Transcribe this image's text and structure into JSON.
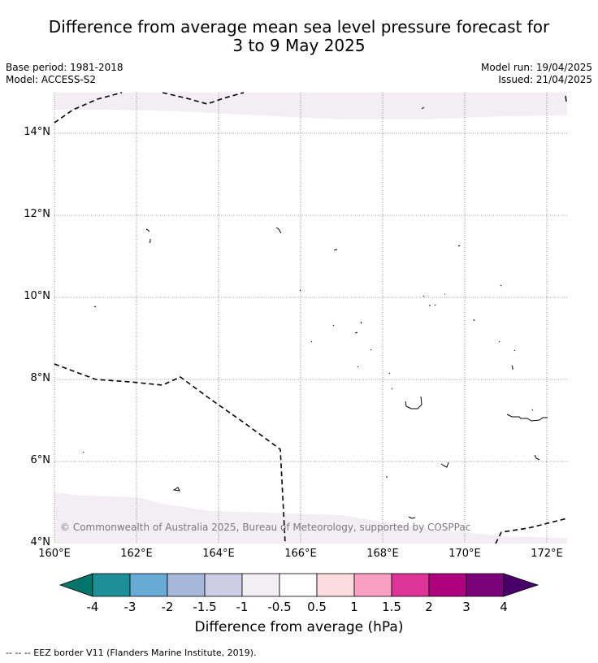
{
  "header": {
    "title_line1": "Difference from average mean sea level pressure forecast for",
    "title_line2": "3 to 9 May 2025",
    "base_period": "Base period: 1981-2018",
    "model": "Model: ACCESS-S2",
    "model_run": "Model run: 19/04/2025",
    "issued": "Issued: 21/04/2025"
  },
  "map": {
    "lat_labels": [
      "14°N",
      "12°N",
      "10°N",
      "8°N",
      "6°N",
      "4°N"
    ],
    "lon_labels": [
      "160°E",
      "162°E",
      "164°E",
      "166°E",
      "168°E",
      "170°E",
      "172°E"
    ],
    "extent": {
      "lon": [
        160,
        172.5
      ],
      "lat": [
        4,
        15
      ]
    },
    "copyright": "© Commonwealth of Australia 2025, Bureau of Meteorology, supported by COSPPac",
    "fill_category_color": "#f3eef4"
  },
  "colorbar": {
    "labels": [
      "-4",
      "-3",
      "-2",
      "-1.5",
      "-1",
      "-0.5",
      "0.5",
      "1",
      "1.5",
      "2",
      "3",
      "4"
    ],
    "colors": [
      "#01756a",
      "#1e8f96",
      "#67aad3",
      "#a5b7db",
      "#cccce4",
      "#f3eef4",
      "#ffffff",
      "#fddcdf",
      "#f99fbf",
      "#dd3497",
      "#ad017e",
      "#7a0177",
      "#49006a"
    ],
    "title": "Difference from average (hPa)"
  },
  "footer": {
    "legend": "--  --  -- EEZ border V11 (Flanders Marine Institute, 2019)."
  }
}
